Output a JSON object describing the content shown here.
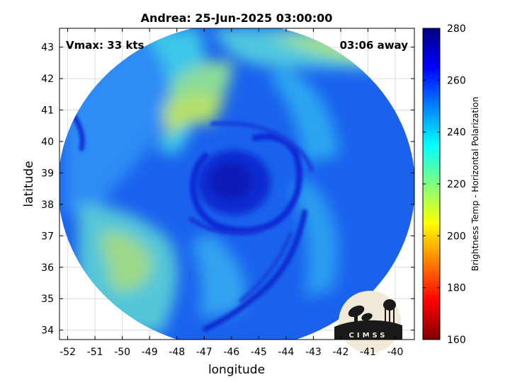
{
  "chart_data": {
    "type": "heatmap",
    "title": "Andrea: 25-Jun-2025 03:00:00",
    "xlabel": "longitude",
    "ylabel": "latitude",
    "xlim": [
      -52.3,
      -39.3
    ],
    "ylim": [
      33.7,
      43.6
    ],
    "x_ticks": [
      "-52",
      "-51",
      "-50",
      "-49",
      "-48",
      "-47",
      "-46",
      "-45",
      "-44",
      "-43",
      "-42",
      "-41",
      "-40"
    ],
    "y_ticks": [
      "34",
      "35",
      "36",
      "37",
      "38",
      "39",
      "40",
      "41",
      "42",
      "43"
    ],
    "grid": true,
    "annotations": {
      "vmax": "Vmax: 33 kts",
      "time_offset": "03:06 away"
    },
    "colorbar": {
      "label": "Brightness Temp - Horizontal Polarization",
      "range": [
        160,
        280
      ],
      "ticks": [
        "160",
        "180",
        "200",
        "220",
        "240",
        "260",
        "280"
      ],
      "colormap": "jet"
    },
    "storm_center": {
      "lon": -45.7,
      "lat": 38.7,
      "min_temp_approx": 268
    },
    "swath": {
      "center_lon": -45.8,
      "center_lat": 38.6,
      "background_temp_approx": 250
    }
  },
  "logo": {
    "text": "CIMSS"
  },
  "colors": {
    "background": "#ffffff",
    "grid": "#dcdcdc",
    "axes": "#000000",
    "logo_fill": "#f2ead8",
    "logo_dark": "#1a1a1a"
  }
}
